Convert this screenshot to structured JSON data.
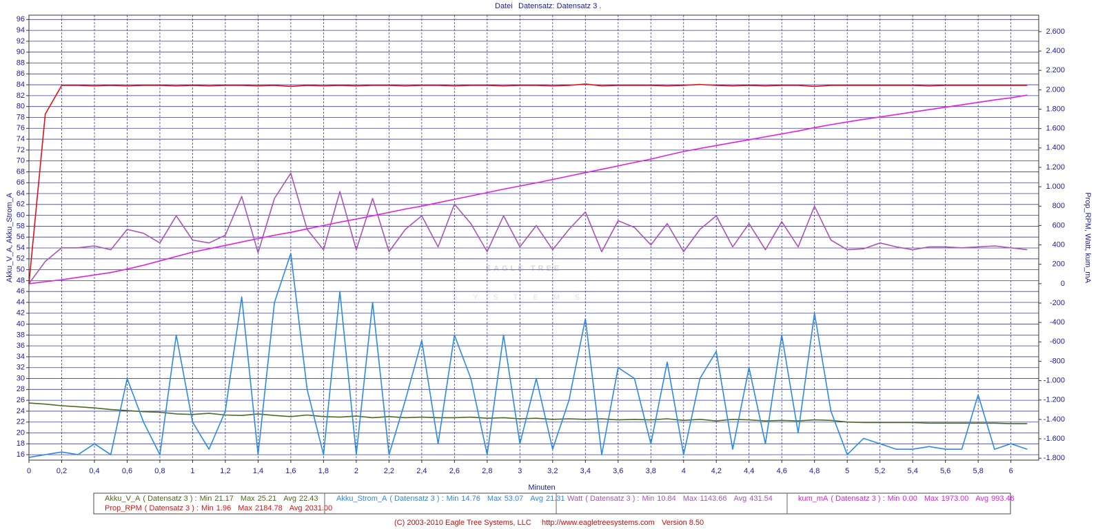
{
  "chart_data": {
    "type": "line",
    "menu": "Datei",
    "title": "Datensatz: Datensatz 3 .",
    "xlabel": "Minuten",
    "ylabel": "Akku_V_A, Akku_Strom_A",
    "y2label": "Prop_RPM, Watt, kum_mA",
    "watermark": [
      "EAGLE TREE",
      "SYSTEMS"
    ],
    "footer": [
      "(C) 2003-2010 Eagle Tree Systems, LLC",
      "http://www.eagletreesystems.com",
      "Version 8.50"
    ],
    "dataset": "( Datensatz 3 ) :",
    "stat_labels": [
      "Min",
      "Max",
      "Avg"
    ],
    "grid": true,
    "xlim": [
      0,
      6.17
    ],
    "ylim": [
      15,
      96.8
    ],
    "y2lim": [
      -1820,
      2770
    ],
    "xticks": [
      0,
      {
        "value": 0.2,
        "label": "0,2"
      },
      {
        "value": 0.4,
        "label": "0,4"
      },
      {
        "value": 0.6,
        "label": "0,6"
      },
      {
        "value": 0.8,
        "label": "0,8"
      },
      1,
      {
        "value": 1.2,
        "label": "1,2"
      },
      {
        "value": 1.4,
        "label": "1,4"
      },
      {
        "value": 1.6,
        "label": "1,6"
      },
      {
        "value": 1.8,
        "label": "1,8"
      },
      2,
      {
        "value": 2.2,
        "label": "2,2"
      },
      {
        "value": 2.4,
        "label": "2,4"
      },
      {
        "value": 2.6,
        "label": "2,6"
      },
      {
        "value": 2.8,
        "label": "2,8"
      },
      3,
      {
        "value": 3.2,
        "label": "3,2"
      },
      {
        "value": 3.4,
        "label": "3,4"
      },
      {
        "value": 3.6,
        "label": "3,6"
      },
      {
        "value": 3.8,
        "label": "3,8"
      },
      4,
      {
        "value": 4.2,
        "label": "4,2"
      },
      {
        "value": 4.4,
        "label": "4,4"
      },
      {
        "value": 4.6,
        "label": "4,6"
      },
      {
        "value": 4.8,
        "label": "4,8"
      },
      5,
      {
        "value": 5.2,
        "label": "5,2"
      },
      {
        "value": 5.4,
        "label": "5,4"
      },
      {
        "value": 5.6,
        "label": "5,6"
      },
      {
        "value": 5.8,
        "label": "5,8"
      },
      6
    ],
    "yticks": [
      16,
      18,
      20,
      22,
      24,
      26,
      28,
      30,
      32,
      34,
      36,
      38,
      40,
      42,
      44,
      46,
      48,
      50,
      52,
      54,
      56,
      58,
      60,
      62,
      64,
      66,
      68,
      70,
      72,
      74,
      76,
      78,
      80,
      82,
      84,
      86,
      88,
      90,
      92,
      94,
      96
    ],
    "y2ticks": [
      {
        "value": -1800,
        "label": "-1.800"
      },
      {
        "value": -1600,
        "label": "-1.600"
      },
      {
        "value": -1400,
        "label": "-1.400"
      },
      {
        "value": -1200,
        "label": "-1.200"
      },
      {
        "value": -1000,
        "label": "-1.000"
      },
      -800,
      -600,
      -400,
      -200,
      0,
      200,
      400,
      600,
      800,
      {
        "value": 1000,
        "label": "1.000"
      },
      {
        "value": 1200,
        "label": "1.200"
      },
      {
        "value": 1400,
        "label": "1.400"
      },
      {
        "value": 1600,
        "label": "1.600"
      },
      {
        "value": 1800,
        "label": "1.800"
      },
      {
        "value": 2000,
        "label": "2.000"
      },
      {
        "value": 2200,
        "label": "2.200"
      },
      {
        "value": 2400,
        "label": "2.400"
      },
      {
        "value": 2600,
        "label": "2.600"
      }
    ],
    "x": [
      0,
      0.1,
      0.2,
      0.3,
      0.4,
      0.5,
      0.6,
      0.7,
      0.8,
      0.9,
      1,
      1.1,
      1.2,
      1.3,
      1.4,
      1.5,
      1.6,
      1.7,
      1.8,
      1.9,
      2,
      2.1,
      2.2,
      2.3,
      2.4,
      2.5,
      2.6,
      2.7,
      2.8,
      2.9,
      3,
      3.1,
      3.2,
      3.3,
      3.4,
      3.5,
      3.6,
      3.7,
      3.8,
      3.9,
      4,
      4.1,
      4.2,
      4.3,
      4.4,
      4.5,
      4.6,
      4.7,
      4.8,
      4.9,
      5,
      5.1,
      5.2,
      5.3,
      5.4,
      5.5,
      5.6,
      5.7,
      5.8,
      5.9,
      6,
      6.1
    ],
    "series": [
      {
        "name": "Akku_V_A",
        "color": "#4a6a1c",
        "stats": [
          "21.17",
          "25.21",
          "22.43"
        ],
        "values": [
          25.5,
          25.3,
          25.0,
          24.8,
          24.6,
          24.3,
          24.1,
          23.9,
          23.8,
          23.5,
          23.4,
          23.6,
          23.3,
          23.2,
          23.5,
          23.2,
          23.0,
          23.3,
          23.0,
          22.9,
          23.1,
          22.8,
          23.0,
          22.8,
          22.9,
          22.8,
          22.8,
          22.9,
          22.7,
          22.8,
          22.6,
          22.7,
          22.5,
          22.6,
          22.5,
          22.6,
          22.4,
          22.5,
          22.4,
          22.6,
          22.3,
          22.5,
          22.2,
          22.5,
          22.4,
          22.2,
          22.3,
          22.2,
          22.4,
          22.3,
          22.0,
          21.9,
          21.9,
          21.9,
          21.9,
          21.8,
          21.8,
          21.8,
          21.8,
          21.8,
          21.7,
          21.7
        ]
      },
      {
        "name": "Prop_RPM",
        "color": "#e01010",
        "axis": "y2",
        "stats": [
          "1.96",
          "2184.78",
          "2031.00"
        ],
        "values": [
          0,
          1750,
          2045,
          2045,
          2040,
          2045,
          2040,
          2045,
          2045,
          2040,
          2045,
          2040,
          2045,
          2045,
          2040,
          2045,
          2035,
          2045,
          2040,
          2045,
          2040,
          2045,
          2045,
          2040,
          2045,
          2045,
          2040,
          2045,
          2045,
          2040,
          2045,
          2045,
          2040,
          2045,
          2060,
          2040,
          2045,
          2045,
          2045,
          2040,
          2045,
          2055,
          2045,
          2040,
          2045,
          2040,
          2045,
          2045,
          2035,
          2045,
          2045,
          2045,
          2045,
          2045,
          2045,
          2040,
          2045,
          2045,
          2045,
          2045,
          2045,
          2045
        ]
      },
      {
        "name": "Akku_Strom_A",
        "color": "#2a8ae8",
        "stats": [
          "14.76",
          "53.07",
          "21.31"
        ],
        "values": [
          15.5,
          16,
          16.5,
          16,
          18,
          16,
          30,
          22,
          16,
          38,
          22,
          17,
          24,
          45,
          16,
          44,
          53,
          28,
          16,
          46,
          16,
          44,
          16,
          26,
          37,
          18,
          38,
          30,
          16,
          38,
          18,
          30,
          17,
          26,
          41,
          16,
          32,
          30,
          18,
          33,
          16,
          30,
          35,
          17,
          32,
          18,
          38,
          20,
          42,
          24,
          16,
          19,
          18,
          17,
          17,
          17.5,
          17,
          17,
          27,
          17,
          18,
          17
        ]
      },
      {
        "name": "Watt",
        "color": "#a855b5",
        "axis": "y2",
        "stats": [
          "10.84",
          "1143.66",
          "431.54"
        ],
        "values": [
          0,
          230,
          370,
          370,
          390,
          350,
          560,
          520,
          420,
          700,
          450,
          420,
          500,
          900,
          320,
          880,
          1140,
          560,
          350,
          950,
          350,
          880,
          330,
          560,
          700,
          380,
          820,
          620,
          330,
          700,
          380,
          600,
          350,
          560,
          740,
          330,
          650,
          580,
          400,
          620,
          330,
          560,
          700,
          380,
          620,
          350,
          640,
          380,
          800,
          450,
          350,
          360,
          420,
          380,
          350,
          380,
          380,
          370,
          380,
          390,
          370,
          350
        ]
      },
      {
        "name": "kum_mA",
        "color": "#e020e0",
        "axis": "y2",
        "stats": [
          "0.00",
          "1973.00",
          "993.46"
        ],
        "values": [
          0,
          20,
          40,
          65,
          90,
          115,
          150,
          190,
          235,
          280,
          325,
          360,
          395,
          430,
          465,
          500,
          530,
          565,
          600,
          635,
          666,
          700,
          735,
          770,
          800,
          835,
          870,
          905,
          940,
          975,
          1007,
          1040,
          1075,
          1110,
          1145,
          1180,
          1215,
          1250,
          1285,
          1325,
          1363,
          1395,
          1425,
          1455,
          1485,
          1515,
          1545,
          1575,
          1610,
          1640,
          1668,
          1695,
          1720,
          1745,
          1770,
          1795,
          1820,
          1845,
          1870,
          1895,
          1917,
          1945
        ]
      }
    ]
  }
}
